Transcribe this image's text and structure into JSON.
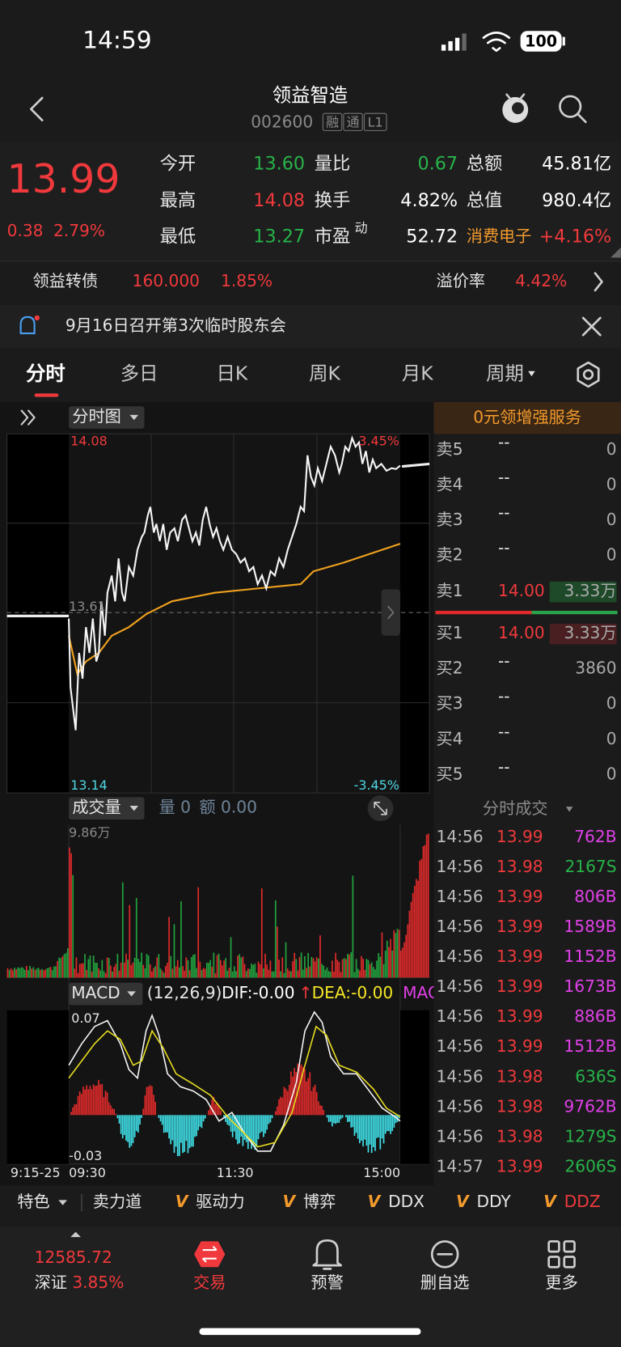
{
  "status_bar": {
    "time": "14:59",
    "battery": "100"
  },
  "header": {
    "title": "领益智造",
    "code": "002600",
    "tags": [
      "融",
      "通",
      "L1"
    ]
  },
  "quote": {
    "price": "13.99",
    "change": "0.38",
    "change_pct": "2.79%",
    "open_label": "今开",
    "open": "13.60",
    "high_label": "最高",
    "high": "14.08",
    "low_label": "最低",
    "low": "13.27",
    "vol_ratio_label": "量比",
    "vol_ratio": "0.67",
    "turnover_label": "换手",
    "turnover": "4.82%",
    "pe_label": "市盈",
    "pe_sup": "动",
    "pe": "52.72",
    "amount_label": "总额",
    "amount": "45.81亿",
    "mkt_cap_label": "总值",
    "mkt_cap": "980.4亿",
    "sector": "消费电子",
    "sector_pct": "+4.16%"
  },
  "bond": {
    "name": "领益转债",
    "price": "160.000",
    "pct": "1.85%",
    "premium_label": "溢价率",
    "premium": "4.42%"
  },
  "notice": "9月16日召开第3次临时股东会",
  "tabs": [
    "分时",
    "多日",
    "日K",
    "周K",
    "月K",
    "周期"
  ],
  "chart": {
    "selector": "分时图",
    "high": "14.08",
    "high_pct": "3.45%",
    "mid": "13.61",
    "low": "13.14",
    "low_pct": "-3.45%",
    "volume_selector": "成交量",
    "vol_now": "量 0",
    "amt_now": "额 0.00",
    "vol_max": "9.86万",
    "macd_selector": "MACD",
    "macd_params": "(12,26,9)",
    "dif": "DIF:-0.00",
    "dif_arrow": "↑",
    "dea": "DEA:-0.00",
    "macd_cut": "MAC",
    "macd_high": "0.07",
    "macd_low": "-0.03",
    "times": [
      "9:15-25",
      "09:30",
      "11:30",
      "15:00"
    ]
  },
  "order_book": {
    "promo": "0元领增强服务",
    "asks": [
      {
        "label": "卖5",
        "price": "--",
        "volume": "0"
      },
      {
        "label": "卖4",
        "price": "--",
        "volume": "0"
      },
      {
        "label": "卖3",
        "price": "--",
        "volume": "0"
      },
      {
        "label": "卖2",
        "price": "--",
        "volume": "0"
      },
      {
        "label": "卖1",
        "price": "14.00",
        "volume": "3.33万"
      }
    ],
    "bids": [
      {
        "label": "买1",
        "price": "14.00",
        "volume": "3.33万"
      },
      {
        "label": "买2",
        "price": "--",
        "volume": "3860"
      },
      {
        "label": "买3",
        "price": "--",
        "volume": "0"
      },
      {
        "label": "买4",
        "price": "--",
        "volume": "0"
      },
      {
        "label": "买5",
        "price": "--",
        "volume": "0"
      }
    ]
  },
  "trades": {
    "title": "分时成交",
    "rows": [
      {
        "time": "14:56",
        "price": "13.99",
        "volume": "762B"
      },
      {
        "time": "14:56",
        "price": "13.98",
        "volume": "2167S"
      },
      {
        "time": "14:56",
        "price": "13.99",
        "volume": "806B"
      },
      {
        "time": "14:56",
        "price": "13.99",
        "volume": "1589B"
      },
      {
        "time": "14:56",
        "price": "13.99",
        "volume": "1152B"
      },
      {
        "time": "14:56",
        "price": "13.99",
        "volume": "1673B"
      },
      {
        "time": "14:56",
        "price": "13.99",
        "volume": "886B"
      },
      {
        "time": "14:56",
        "price": "13.99",
        "volume": "1512B"
      },
      {
        "time": "14:56",
        "price": "13.98",
        "volume": "636S"
      },
      {
        "time": "14:56",
        "price": "13.98",
        "volume": "9762B"
      },
      {
        "time": "14:56",
        "price": "13.98",
        "volume": "1279S"
      },
      {
        "time": "14:57",
        "price": "13.99",
        "volume": "2606S"
      }
    ]
  },
  "indicators": [
    "特色",
    "卖力道",
    "驱动力",
    "博弈",
    "DDX",
    "DDY",
    "DDZ"
  ],
  "bottom": {
    "index_value": "12585.72",
    "index_name": "深证",
    "index_pct": "3.85%",
    "nav": [
      "交易",
      "预警",
      "删自选",
      "更多"
    ]
  }
}
